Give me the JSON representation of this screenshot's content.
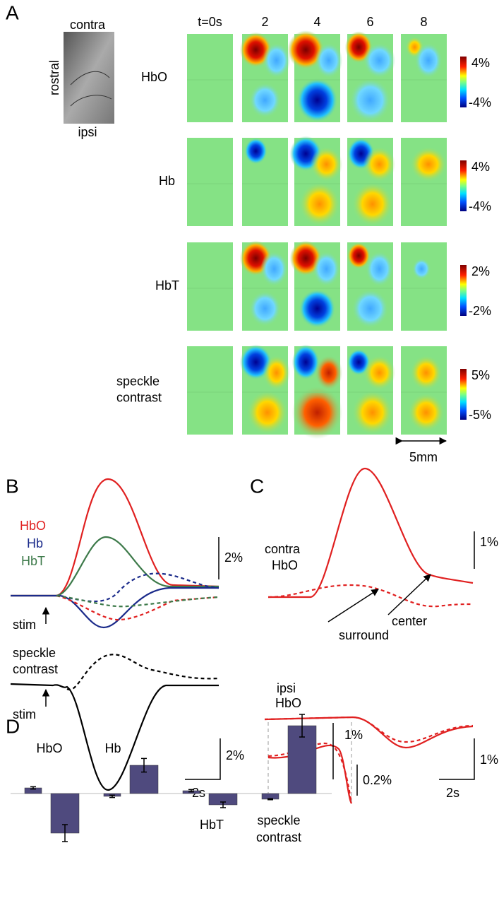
{
  "panel_a": {
    "label": "A",
    "photo_labels": {
      "top": "contra",
      "side": "rostral",
      "bottom": "ipsi"
    },
    "times": [
      "t=0s",
      "2",
      "4",
      "6",
      "8"
    ],
    "rows": [
      {
        "name": [
          "HbO"
        ],
        "max": "4%",
        "min": "-4%"
      },
      {
        "name": [
          "Hb"
        ],
        "max": "4%",
        "min": "-4%"
      },
      {
        "name": [
          "HbT"
        ],
        "max": "2%",
        "min": "-2%"
      },
      {
        "name": [
          "speckle",
          "contrast"
        ],
        "max": "5%",
        "min": "-5%"
      }
    ],
    "scale_bar": "5mm"
  },
  "panel_b": {
    "label": "B",
    "legend": [
      "HbO",
      "Hb",
      "HbT"
    ],
    "stim": "stim",
    "upper_scale": "2%",
    "speckle": [
      "speckle",
      "contrast"
    ],
    "lower_scale": "2%",
    "time_scale": "2s"
  },
  "panel_c": {
    "label": "C",
    "contra": [
      "contra",
      "HbO"
    ],
    "surround": "surround",
    "center": "center",
    "upper_scale": "1%",
    "ipsi": [
      "ipsi",
      "HbO"
    ],
    "inset_scale": "0.2%",
    "lower_scale": "1%",
    "time_scale": "2s"
  },
  "chart_data": {
    "type": "bar",
    "title": "D",
    "categories": [
      "HbO",
      "Hb",
      "HbT",
      [
        "speckle",
        "contrast"
      ]
    ],
    "series": [
      {
        "color": "#4f4a7e",
        "values": [
          0.1,
          -0.05,
          0.05,
          -0.1
        ],
        "errors": [
          0.02,
          0.02,
          0.02,
          0.01
        ]
      },
      {
        "color": "#4f4a7e",
        "values": [
          -0.7,
          0.5,
          -0.2,
          1.2
        ],
        "errors": [
          0.15,
          0.12,
          0.05,
          0.2
        ]
      }
    ],
    "scale_bar": {
      "value": 1,
      "label": "1%"
    }
  }
}
